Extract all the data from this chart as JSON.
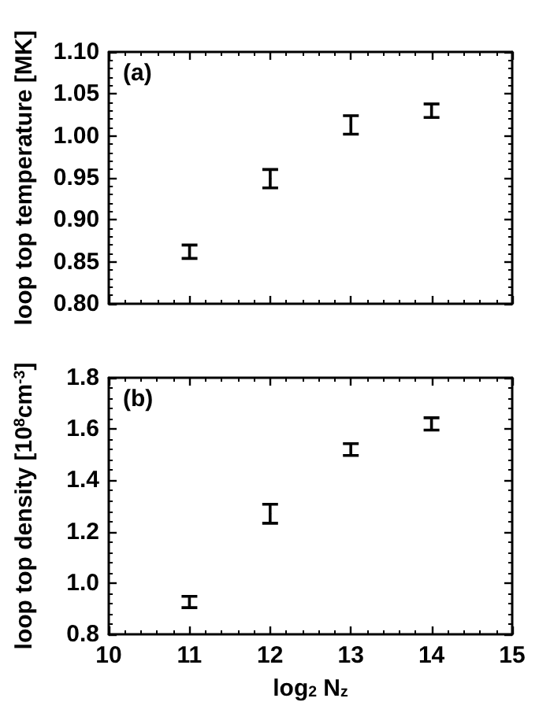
{
  "chart_data": [
    {
      "type": "scatter",
      "ylabel": "loop top temperature [MK]",
      "annotations": [
        "(a)"
      ],
      "xlim": [
        10,
        15
      ],
      "xticks": [
        10,
        11,
        12,
        13,
        14,
        15
      ],
      "ylim": [
        0.8,
        1.1
      ],
      "yticks": [
        {
          "value": 0.8,
          "label": "0.80"
        },
        {
          "value": 0.85,
          "label": "0.85"
        },
        {
          "value": 0.9,
          "label": "0.90"
        },
        {
          "value": 0.95,
          "label": "0.95"
        },
        {
          "value": 1.0,
          "label": "1.00"
        },
        {
          "value": 1.05,
          "label": "1.05"
        },
        {
          "value": 1.1,
          "label": "1.10"
        }
      ],
      "tick_labels": "y",
      "grid": false,
      "series": [
        {
          "color": "#000000",
          "x": [
            11,
            12,
            13,
            14
          ],
          "values": [
            0.862,
            0.949,
            1.013,
            1.03
          ],
          "errors": [
            0.008,
            0.011,
            0.011,
            0.008
          ]
        }
      ]
    },
    {
      "type": "scatter",
      "xlabel": "log$_{2}$ N$_{z}$",
      "ylabel": "loop top density [10$^{8}$cm$^{-3}$]",
      "annotations": [
        "(b)"
      ],
      "xlim": [
        10,
        15
      ],
      "xticks": [
        10,
        11,
        12,
        13,
        14,
        15
      ],
      "ylim": [
        0.8,
        1.8
      ],
      "yticks": [
        {
          "value": 0.8,
          "label": "0.8"
        },
        {
          "value": 1.0,
          "label": "1.0"
        },
        {
          "value": 1.2,
          "label": "1.2"
        },
        {
          "value": 1.4,
          "label": "1.4"
        },
        {
          "value": 1.6,
          "label": "1.6"
        },
        {
          "value": 1.8,
          "label": "1.8"
        }
      ],
      "grid": false,
      "series": [
        {
          "color": "#000000",
          "x": [
            11,
            12,
            13,
            14
          ],
          "values": [
            0.926,
            1.27,
            1.52,
            1.62
          ],
          "errors": [
            0.022,
            0.037,
            0.023,
            0.024
          ]
        }
      ]
    }
  ]
}
